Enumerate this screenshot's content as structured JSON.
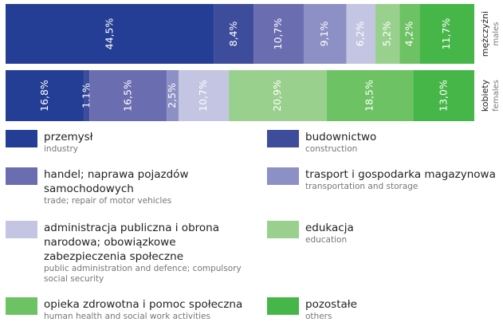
{
  "chart_data": {
    "type": "stacked-bar",
    "categories": [
      "mężczyźni",
      "kobiety"
    ],
    "categories_en": [
      "males",
      "females"
    ],
    "series": [
      {
        "name": "przemysł",
        "name_en": "industry",
        "color": "#233e94",
        "values": [
          44.5,
          16.8
        ],
        "value_labels": [
          "44,5%",
          "16,8%"
        ]
      },
      {
        "name": "budownictwo",
        "name_en": "construction",
        "color": "#3d4c9b",
        "values": [
          8.4,
          1.1
        ],
        "value_labels": [
          "8,4%",
          "1,1%"
        ]
      },
      {
        "name": "handel; naprawa pojazdów samochodowych",
        "name_en": "trade; repair of motor vehicles",
        "color": "#6a6daf",
        "values": [
          10.7,
          16.5
        ],
        "value_labels": [
          "10,7%",
          "16,5%"
        ]
      },
      {
        "name": "trasport i gospodarka magazynowa",
        "name_en": "transportation and storage",
        "color": "#8d90c4",
        "values": [
          9.1,
          2.5
        ],
        "value_labels": [
          "9,1%",
          "2,5%"
        ]
      },
      {
        "name": "administracja publiczna i obrona narodowa; obowiązkowe zabezpieczenia społeczne",
        "name_en": "public administration and defence; compulsory social security",
        "color": "#c3c5e2",
        "values": [
          6.2,
          10.7
        ],
        "value_labels": [
          "6,2%",
          "10,7%"
        ]
      },
      {
        "name": "edukacja",
        "name_en": "education",
        "color": "#9ad08d",
        "values": [
          5.2,
          20.9
        ],
        "value_labels": [
          "5,2%",
          "20,9%"
        ]
      },
      {
        "name": "opieka zdrowotna i pomoc społeczna",
        "name_en": "human health and social work activities",
        "color": "#6dc264",
        "values": [
          4.2,
          18.5
        ],
        "value_labels": [
          "4,2%",
          "18,5%"
        ]
      },
      {
        "name": "pozostałe",
        "name_en": "others",
        "color": "#47b649",
        "values": [
          11.7,
          13.0
        ],
        "value_labels": [
          "11,7%",
          "13,0%"
        ]
      }
    ]
  }
}
